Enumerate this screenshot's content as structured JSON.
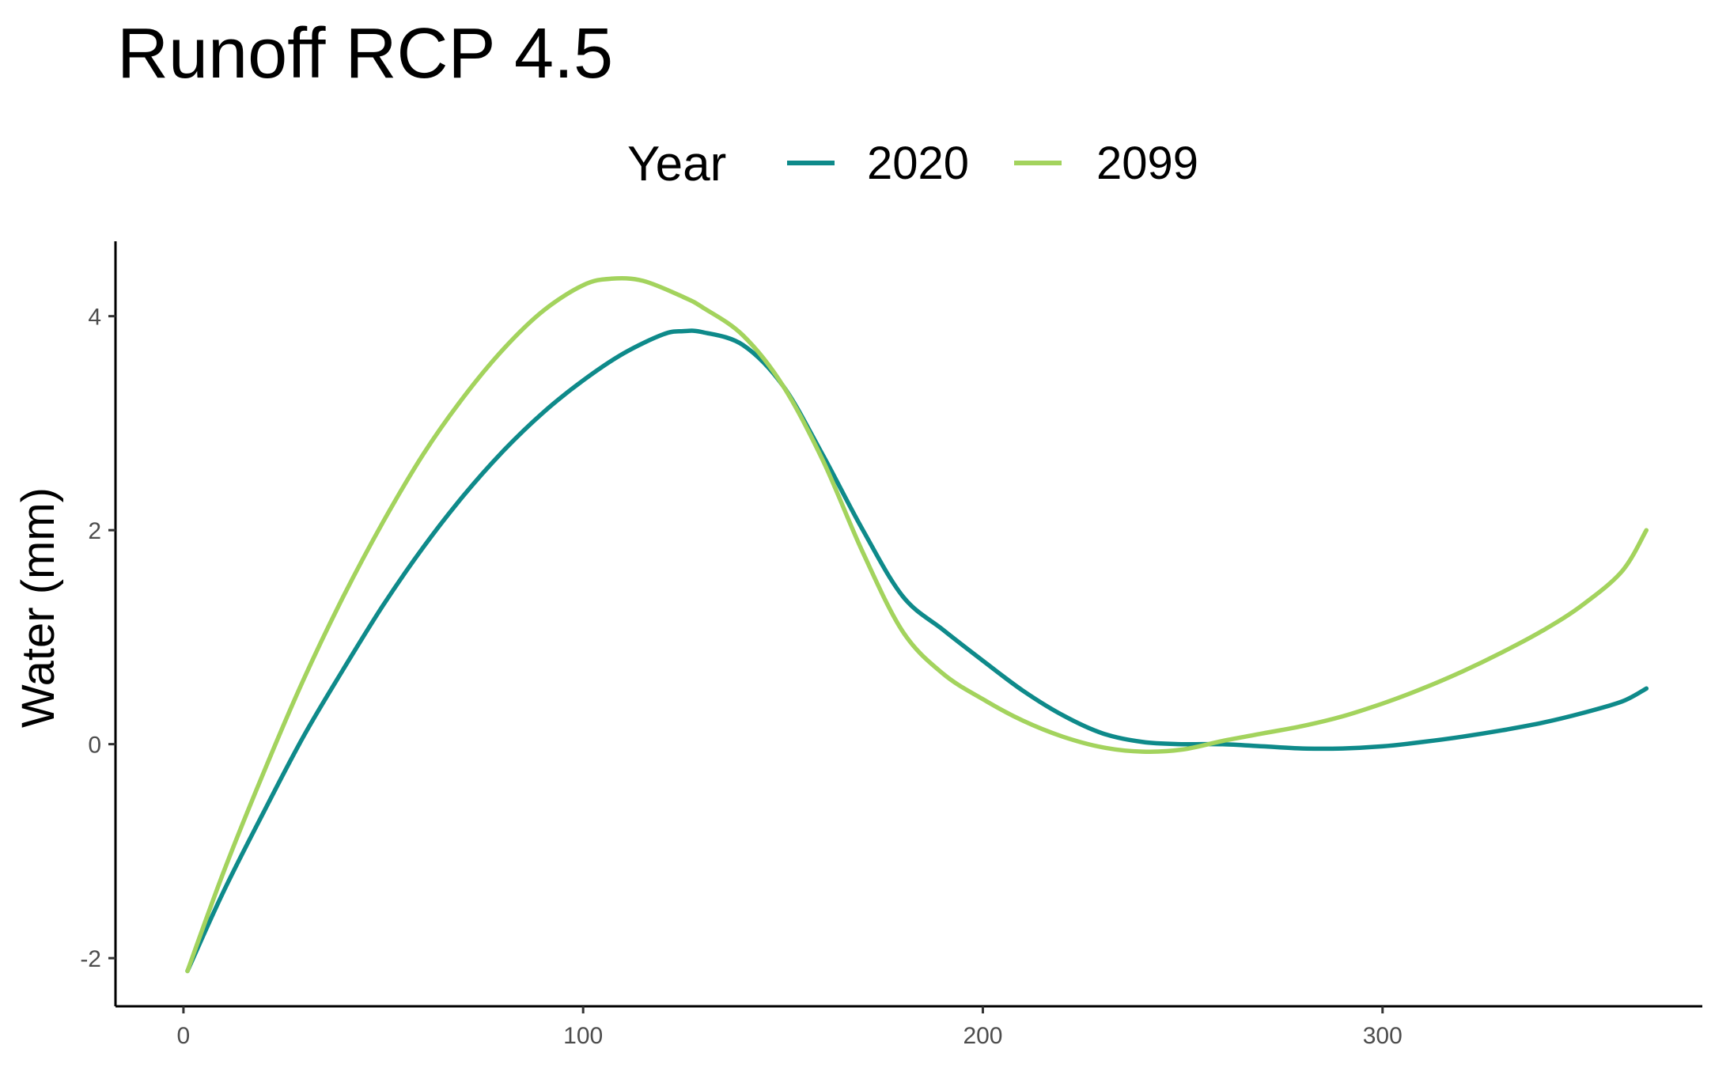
{
  "chart_data": {
    "type": "line",
    "title": "Runoff RCP 4.5",
    "xlabel": "",
    "ylabel": "Water (mm)",
    "xlim": [
      -17,
      380
    ],
    "ylim": [
      -2.45,
      4.7
    ],
    "x_ticks": [
      0,
      100,
      200,
      300
    ],
    "y_ticks": [
      -2,
      0,
      2,
      4
    ],
    "x_tick_labels": [
      "0",
      "100",
      "200",
      "300"
    ],
    "y_tick_labels": [
      "-2",
      "0",
      "2",
      "4"
    ],
    "grid": false,
    "legend": {
      "title": "Year",
      "position": "top"
    },
    "series": [
      {
        "name": "2020",
        "color": "#0e8a8a",
        "x": [
          1,
          10,
          20,
          30,
          40,
          50,
          60,
          70,
          80,
          90,
          100,
          110,
          120,
          125,
          130,
          140,
          150,
          160,
          170,
          180,
          190,
          200,
          210,
          220,
          230,
          240,
          250,
          260,
          270,
          280,
          290,
          300,
          310,
          320,
          330,
          340,
          350,
          360,
          366
        ],
        "values": [
          -2.12,
          -1.38,
          -0.64,
          0.07,
          0.7,
          1.3,
          1.84,
          2.32,
          2.74,
          3.1,
          3.4,
          3.65,
          3.83,
          3.86,
          3.85,
          3.73,
          3.35,
          2.7,
          2.0,
          1.38,
          1.07,
          0.78,
          0.5,
          0.27,
          0.1,
          0.02,
          0.0,
          0.0,
          -0.02,
          -0.04,
          -0.04,
          -0.02,
          0.02,
          0.07,
          0.13,
          0.2,
          0.29,
          0.4,
          0.52
        ]
      },
      {
        "name": "2099",
        "color": "#a3d35d",
        "x": [
          1,
          10,
          20,
          30,
          40,
          50,
          60,
          70,
          80,
          90,
          100,
          107,
          115,
          125,
          130,
          140,
          150,
          160,
          170,
          180,
          190,
          200,
          210,
          220,
          230,
          240,
          250,
          260,
          270,
          280,
          290,
          300,
          310,
          320,
          330,
          340,
          350,
          360,
          366
        ],
        "values": [
          -2.12,
          -1.2,
          -0.27,
          0.6,
          1.38,
          2.08,
          2.71,
          3.24,
          3.69,
          4.05,
          4.29,
          4.35,
          4.33,
          4.18,
          4.08,
          3.82,
          3.35,
          2.65,
          1.79,
          1.05,
          0.66,
          0.42,
          0.22,
          0.07,
          -0.03,
          -0.07,
          -0.05,
          0.03,
          0.1,
          0.17,
          0.26,
          0.38,
          0.52,
          0.68,
          0.86,
          1.06,
          1.3,
          1.62,
          2.0
        ]
      }
    ]
  }
}
